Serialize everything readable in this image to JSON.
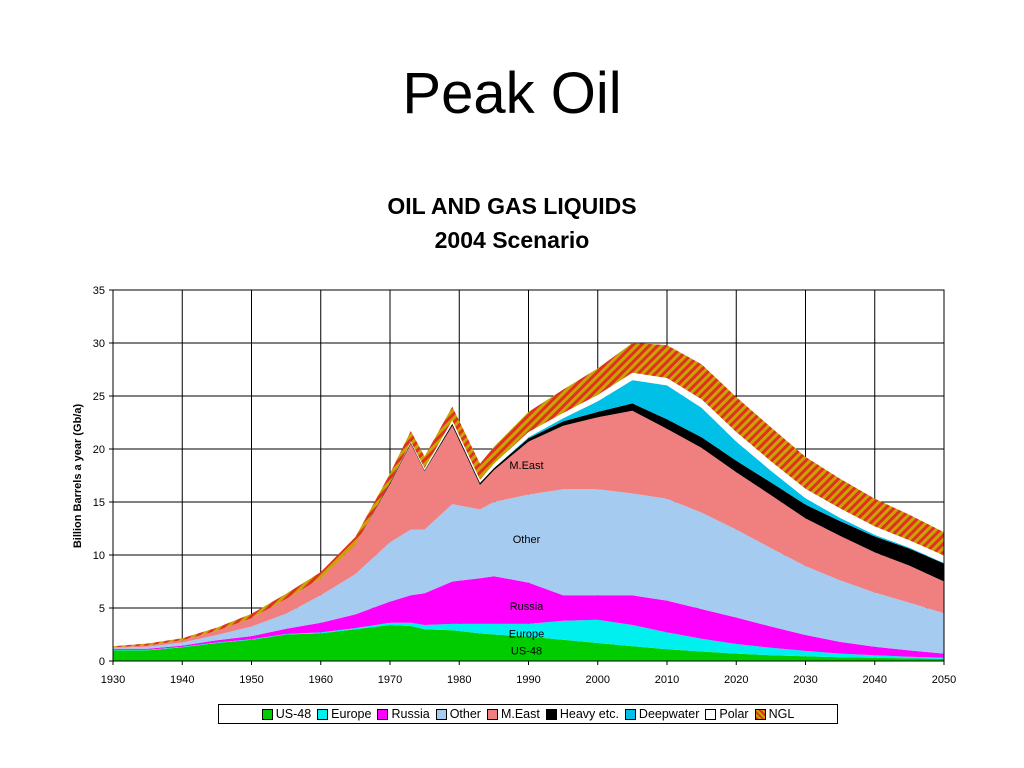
{
  "slide": {
    "title": "Peak Oil"
  },
  "chart_data": {
    "type": "area",
    "title": "OIL AND GAS LIQUIDS",
    "subtitle": "2004 Scenario",
    "xlabel": "",
    "ylabel": "Billion Barrels a year (Gb/a)",
    "xlim": [
      1930,
      2050
    ],
    "ylim": [
      0,
      35
    ],
    "x_ticks": [
      1930,
      1940,
      1950,
      1960,
      1970,
      1980,
      1990,
      2000,
      2010,
      2020,
      2030,
      2040,
      2050
    ],
    "y_ticks": [
      0,
      5,
      10,
      15,
      20,
      25,
      30,
      35
    ],
    "grid": true,
    "legend_position": "bottom",
    "stacked": true,
    "x": [
      1930,
      1935,
      1940,
      1945,
      1950,
      1955,
      1960,
      1965,
      1970,
      1973,
      1975,
      1979,
      1983,
      1985,
      1990,
      1995,
      2000,
      2005,
      2010,
      2015,
      2020,
      2025,
      2030,
      2035,
      2040,
      2045,
      2050
    ],
    "series": [
      {
        "name": "US-48",
        "color": "#00cc00",
        "pattern": "solid",
        "values": [
          1.0,
          1.0,
          1.3,
          1.7,
          2.0,
          2.5,
          2.6,
          3.0,
          3.4,
          3.3,
          3.0,
          2.9,
          2.6,
          2.5,
          2.3,
          2.0,
          1.7,
          1.4,
          1.1,
          0.9,
          0.7,
          0.55,
          0.45,
          0.35,
          0.3,
          0.25,
          0.2
        ]
      },
      {
        "name": "Europe",
        "color": "#00f0f0",
        "pattern": "solid",
        "values": [
          0.05,
          0.05,
          0.05,
          0.05,
          0.05,
          0.05,
          0.1,
          0.1,
          0.2,
          0.3,
          0.4,
          0.6,
          0.9,
          1.0,
          1.2,
          1.8,
          2.2,
          2.0,
          1.6,
          1.2,
          0.9,
          0.7,
          0.5,
          0.35,
          0.25,
          0.15,
          0.1
        ]
      },
      {
        "name": "Russia",
        "color": "#ff00ff",
        "pattern": "solid",
        "values": [
          0.1,
          0.1,
          0.1,
          0.2,
          0.3,
          0.5,
          0.9,
          1.3,
          2.0,
          2.6,
          3.0,
          4.0,
          4.3,
          4.5,
          3.9,
          2.4,
          2.3,
          2.8,
          3.0,
          2.8,
          2.5,
          2.0,
          1.5,
          1.1,
          0.8,
          0.6,
          0.4
        ]
      },
      {
        "name": "Other",
        "color": "#a6cbf0",
        "pattern": "solid",
        "values": [
          0.1,
          0.2,
          0.3,
          0.5,
          0.9,
          1.4,
          2.6,
          3.8,
          5.6,
          6.2,
          6.0,
          7.3,
          6.5,
          7.0,
          8.3,
          10.0,
          10.0,
          9.6,
          9.6,
          9.1,
          8.3,
          7.4,
          6.5,
          5.8,
          5.1,
          4.5,
          3.8
        ]
      },
      {
        "name": "M.East",
        "color": "#f08080",
        "pattern": "solid",
        "values": [
          0.05,
          0.1,
          0.2,
          0.4,
          0.8,
          1.4,
          1.6,
          2.8,
          5.5,
          8.1,
          5.5,
          7.4,
          2.3,
          3.0,
          5.0,
          6.0,
          6.8,
          7.8,
          6.6,
          6.1,
          5.4,
          5.0,
          4.5,
          4.2,
          3.8,
          3.5,
          3.0
        ]
      },
      {
        "name": "Heavy etc.",
        "color": "#000000",
        "pattern": "solid",
        "values": [
          0.0,
          0.0,
          0.0,
          0.0,
          0.0,
          0.0,
          0.0,
          0.0,
          0.1,
          0.1,
          0.1,
          0.2,
          0.2,
          0.2,
          0.3,
          0.4,
          0.5,
          0.7,
          0.9,
          1.0,
          1.1,
          1.2,
          1.3,
          1.4,
          1.5,
          1.6,
          1.7
        ]
      },
      {
        "name": "Deepwater",
        "color": "#00c0e8",
        "pattern": "solid",
        "values": [
          0.0,
          0.0,
          0.0,
          0.0,
          0.0,
          0.0,
          0.0,
          0.0,
          0.0,
          0.0,
          0.0,
          0.0,
          0.0,
          0.0,
          0.1,
          0.3,
          1.0,
          2.2,
          3.2,
          2.8,
          1.8,
          1.1,
          0.6,
          0.3,
          0.15,
          0.1,
          0.05
        ]
      },
      {
        "name": "Polar",
        "color": "#ffffff",
        "pattern": "solid",
        "values": [
          0.0,
          0.0,
          0.0,
          0.0,
          0.0,
          0.0,
          0.0,
          0.0,
          0.0,
          0.1,
          0.2,
          0.3,
          0.3,
          0.4,
          0.5,
          0.5,
          0.6,
          0.7,
          0.7,
          0.8,
          0.9,
          0.9,
          0.9,
          0.9,
          0.8,
          0.7,
          0.7
        ]
      },
      {
        "name": "NGL",
        "color": "#c08000",
        "pattern": "striped",
        "values": [
          0.1,
          0.2,
          0.2,
          0.3,
          0.4,
          0.5,
          0.6,
          0.7,
          0.9,
          1.0,
          1.1,
          1.3,
          1.5,
          1.6,
          1.9,
          2.2,
          2.5,
          2.8,
          3.1,
          3.3,
          3.3,
          3.2,
          3.0,
          2.8,
          2.6,
          2.4,
          2.2
        ]
      }
    ],
    "annotations": [
      {
        "text": "M.East",
        "x": 1990,
        "y": 18.5
      },
      {
        "text": "Other",
        "x": 1990,
        "y": 11.5
      },
      {
        "text": "Russia",
        "x": 1990,
        "y": 5.2
      },
      {
        "text": "Europe",
        "x": 1990,
        "y": 2.6
      },
      {
        "text": "US-48",
        "x": 1990,
        "y": 1.0
      }
    ]
  }
}
